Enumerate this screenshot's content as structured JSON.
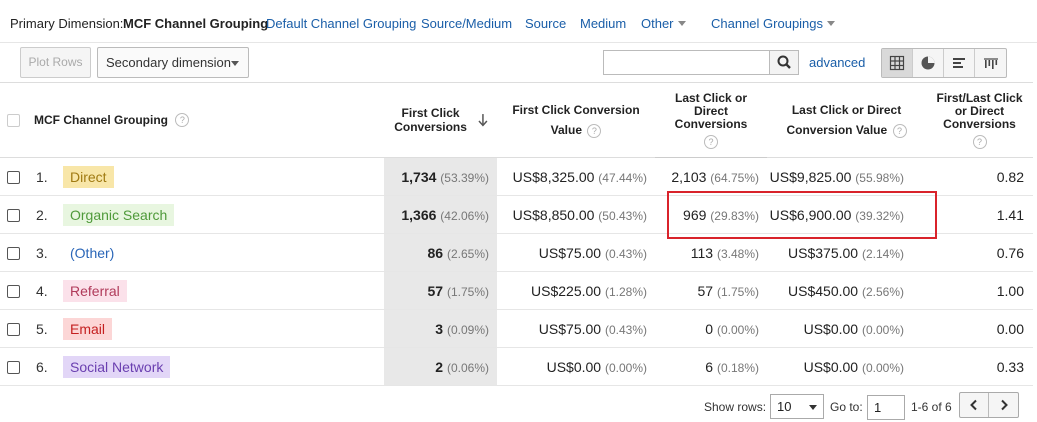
{
  "primary_dimension": {
    "label": "Primary Dimension:",
    "current": "MCF Channel Grouping",
    "links": [
      "Default Channel Grouping",
      "Source/Medium",
      "Source",
      "Medium",
      "Other",
      "Channel Groupings"
    ]
  },
  "toolbar": {
    "plot_rows": "Plot Rows",
    "secondary_dimension": "Secondary dimension",
    "search_value": "",
    "advanced": "advanced"
  },
  "table": {
    "headers": {
      "dimension": "MCF Channel Grouping",
      "first_click_conversions": "First Click Conversions",
      "first_click_value": "First Click Conversion Value",
      "last_click_conversions": "Last Click or Direct Conversions",
      "last_click_value": "Last Click or Direct Conversion Value",
      "ratio": "First/Last Click or Direct Conversions"
    },
    "help": "?",
    "rows": [
      {
        "idx": "1.",
        "name": "Direct",
        "fc": "1,734",
        "fc_pct": "(53.39%)",
        "fcv": "US$8,325.00",
        "fcv_pct": "(47.44%)",
        "lc": "2,103",
        "lc_pct": "(64.75%)",
        "lcv": "US$9,825.00",
        "lcv_pct": "(55.98%)",
        "ratio": "0.82",
        "bg": "#f8e6a8",
        "fg": "#a07a12"
      },
      {
        "idx": "2.",
        "name": "Organic Search",
        "fc": "1,366",
        "fc_pct": "(42.06%)",
        "fcv": "US$8,850.00",
        "fcv_pct": "(50.43%)",
        "lc": "969",
        "lc_pct": "(29.83%)",
        "lcv": "US$6,900.00",
        "lcv_pct": "(39.32%)",
        "ratio": "1.41",
        "bg": "#e8f6e0",
        "fg": "#4f9a3a"
      },
      {
        "idx": "3.",
        "name": "(Other)",
        "fc": "86",
        "fc_pct": "(2.65%)",
        "fcv": "US$75.00",
        "fcv_pct": "(0.43%)",
        "lc": "113",
        "lc_pct": "(3.48%)",
        "lcv": "US$375.00",
        "lcv_pct": "(2.14%)",
        "ratio": "0.76",
        "bg": "#ffffff",
        "fg": "#2a66b8"
      },
      {
        "idx": "4.",
        "name": "Referral",
        "fc": "57",
        "fc_pct": "(1.75%)",
        "fcv": "US$225.00",
        "fcv_pct": "(1.28%)",
        "lc": "57",
        "lc_pct": "(1.75%)",
        "lcv": "US$450.00",
        "lcv_pct": "(2.56%)",
        "ratio": "1.00",
        "bg": "#fbe1ea",
        "fg": "#b03a5a"
      },
      {
        "idx": "5.",
        "name": "Email",
        "fc": "3",
        "fc_pct": "(0.09%)",
        "fcv": "US$75.00",
        "fcv_pct": "(0.43%)",
        "lc": "0",
        "lc_pct": "(0.00%)",
        "lcv": "US$0.00",
        "lcv_pct": "(0.00%)",
        "ratio": "0.00",
        "bg": "#fcd6d6",
        "fg": "#c42020"
      },
      {
        "idx": "6.",
        "name": "Social Network",
        "fc": "2",
        "fc_pct": "(0.06%)",
        "fcv": "US$0.00",
        "fcv_pct": "(0.00%)",
        "lc": "6",
        "lc_pct": "(0.18%)",
        "lcv": "US$0.00",
        "lcv_pct": "(0.00%)",
        "ratio": "0.33",
        "bg": "#e2d6f7",
        "fg": "#6a3fb0"
      }
    ]
  },
  "footer": {
    "show_rows_label": "Show rows:",
    "show_rows_value": "10",
    "goto_label": "Go to:",
    "goto_value": "1",
    "range": "1-6 of 6"
  },
  "colors": {
    "link": "#1a5ea8",
    "highlight_box": "#d9232b",
    "sorted_column_bg": "#e8e8e8"
  }
}
